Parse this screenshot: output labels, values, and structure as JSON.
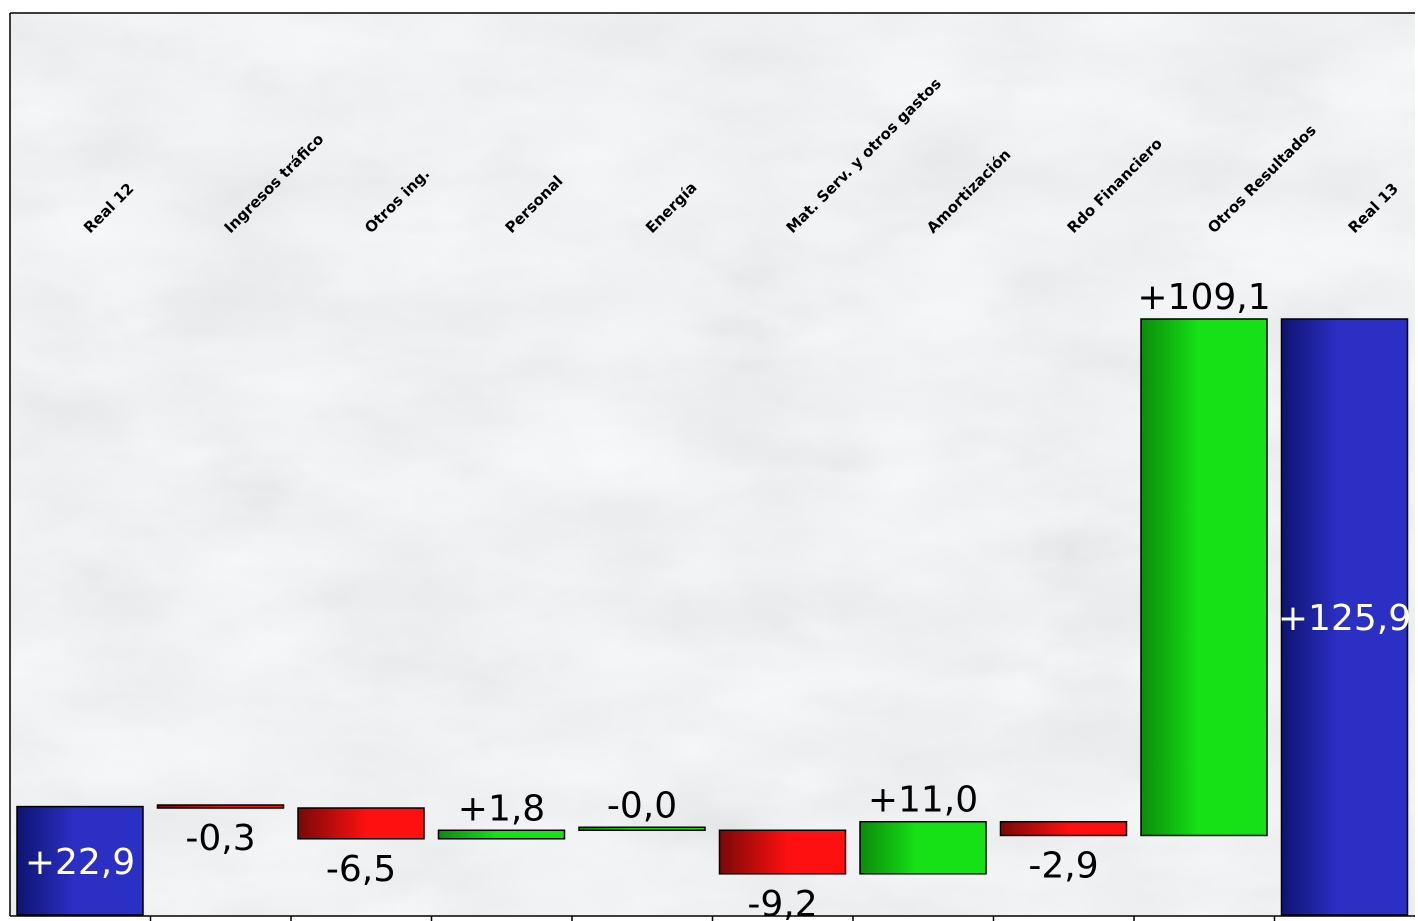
{
  "chart_data": {
    "type": "bar",
    "subtype": "waterfall",
    "categories": [
      "Real 12",
      "Ingresos tráfico",
      "Otros ing.",
      "Personal",
      "Energía",
      "Mat. Serv. y otros gastos",
      "Amortización",
      "Rdo Financiero",
      "Otros Resultados",
      "Real 13"
    ],
    "values": [
      22.9,
      -0.3,
      -6.5,
      1.8,
      -0.0,
      -9.2,
      11.0,
      -2.9,
      109.1,
      125.9
    ],
    "value_labels": [
      "+22,9",
      "-0,3",
      "-6,5",
      "+1,8",
      "-0,0",
      "-9,2",
      "+11,0",
      "-2,9",
      "+109,1",
      "+125,9"
    ],
    "bar_kind": [
      "total",
      "delta",
      "delta",
      "delta",
      "delta",
      "delta",
      "delta",
      "delta",
      "delta",
      "total"
    ],
    "title": "",
    "xlabel": "",
    "ylabel": "",
    "legend": "none",
    "grid": false,
    "colors": {
      "total": "#2b2fc4",
      "total_dark": "#0d1470",
      "increase": "#16e016",
      "increase_dark": "#0b8c0b",
      "decrease": "#ff1010",
      "decrease_dark": "#7a0808",
      "frame": "#000000",
      "background": "#e9ebec",
      "marble_vein": "#8e9296"
    }
  }
}
